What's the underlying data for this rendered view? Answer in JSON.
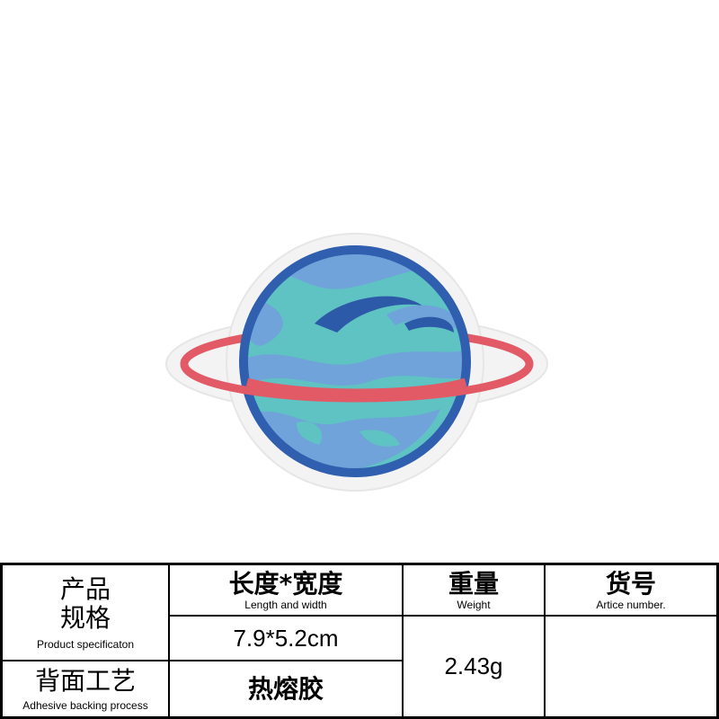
{
  "colors": {
    "planet_outline": "#2f5fae",
    "planet_teal": "#5fc2c3",
    "planet_swirl_light": "#6fa3d9",
    "planet_swirl_dark": "#2c5aa8",
    "ring": "#e25a66",
    "patch_backing": "#f4f4f4"
  },
  "image": {
    "subject": "planet-embroidered-patch"
  },
  "table": {
    "headers": {
      "spec": {
        "cn_line1": "产品",
        "cn_line2": "规格",
        "en": "Product specificaton"
      },
      "size": {
        "cn": "长度*宽度",
        "en": "Length and width"
      },
      "weight": {
        "cn": "重量",
        "en": "Weight"
      },
      "article": {
        "cn": "货号",
        "en": "Artice number."
      }
    },
    "backing": {
      "cn": "背面工艺",
      "en": "Adhesive backing process"
    },
    "values": {
      "size": "7.9*5.2cm",
      "weight": "2.43g",
      "article": "",
      "backing": "热熔胶"
    }
  }
}
